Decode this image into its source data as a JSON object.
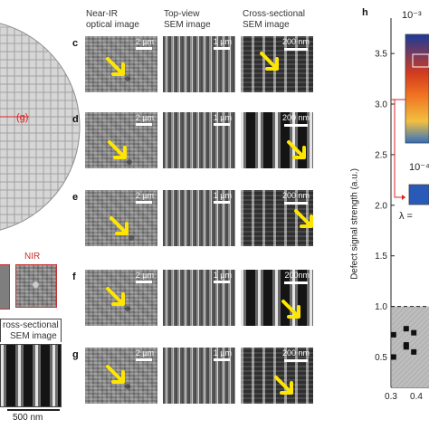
{
  "wafer": {
    "marker_label": "(g)"
  },
  "inset_left": {
    "nir_label": "NIR"
  },
  "left_bottom": {
    "heading_line1": "ross-sectional",
    "heading_line2": "SEM image",
    "scale_label": "500 nm"
  },
  "columns": {
    "nir": [
      "Near-IR",
      "optical image"
    ],
    "top": [
      "Top-view",
      "SEM image"
    ],
    "cross": [
      "Cross-sectional",
      "SEM image"
    ]
  },
  "rows": [
    {
      "letter": "c",
      "nir_scale": "2 µm",
      "top_scale": "1 µm",
      "cross_scale": "200 nm"
    },
    {
      "letter": "d",
      "nir_scale": "2 µm",
      "top_scale": "1 µm",
      "cross_scale": "200 nm"
    },
    {
      "letter": "e",
      "nir_scale": "2 µm",
      "top_scale": "1 µm",
      "cross_scale": "200 nm"
    },
    {
      "letter": "f",
      "nir_scale": "2 µm",
      "top_scale": "1 µm",
      "cross_scale": "200nm"
    },
    {
      "letter": "g",
      "nir_scale": "2 µm",
      "top_scale": "1 µm",
      "cross_scale": "200 nm"
    }
  ],
  "panel_h": {
    "letter": "h",
    "ylabel": "Defect signal strength (a.u.)",
    "inset_top_exp": "10⁻³",
    "inset_mid_exp": "10⁻⁴",
    "lambda_label": "λ =",
    "threshold": 1.0
  },
  "chart_data": {
    "type": "scatter",
    "title": "",
    "xlabel": "",
    "ylabel": "Defect signal strength (a.u.)",
    "x_ticks": [
      "0.3",
      "0.4"
    ],
    "y_ticks": [
      "0.5",
      "1.0",
      "1.5",
      "2.0",
      "2.5",
      "3.0",
      "3.5"
    ],
    "xlim": [
      0.3,
      0.45
    ],
    "ylim": [
      0.2,
      3.85
    ],
    "threshold_line": 1.0,
    "points": [
      {
        "x": 0.31,
        "y": 0.72
      },
      {
        "x": 0.31,
        "y": 0.5
      },
      {
        "x": 0.36,
        "y": 0.78
      },
      {
        "x": 0.36,
        "y": 0.62
      },
      {
        "x": 0.36,
        "y": 0.6
      },
      {
        "x": 0.39,
        "y": 0.74
      },
      {
        "x": 0.39,
        "y": 0.55
      }
    ]
  },
  "colors": {
    "arrow": "#ffe600",
    "marker_red": "#e02020",
    "frame_red": "#c83030",
    "accent_dark": "#222222"
  }
}
